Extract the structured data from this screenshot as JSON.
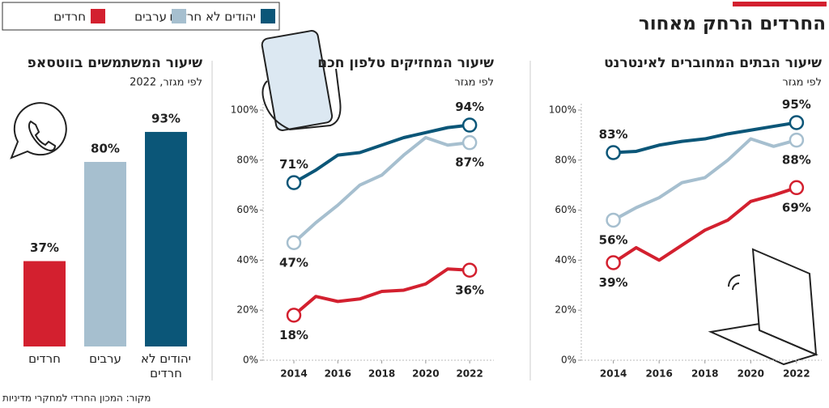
{
  "title": "החרדים הרחק מאחור",
  "source": "מקור: המכון החרדי למחקרי מדיניות",
  "chart_data": [
    {
      "type": "line",
      "title": "שיעור הבתים המחוברים לאינטרנט",
      "subtitle": "לפי מגזר",
      "x": [
        2014,
        2015,
        2016,
        2017,
        2018,
        2019,
        2020,
        2021,
        2022
      ],
      "xlim": [
        2012.6,
        2023.1
      ],
      "xticks": [
        2014,
        2016,
        2018,
        2020,
        2022
      ],
      "ylim": [
        0,
        100
      ],
      "yticks": [
        {
          "value": 0,
          "label": "0%"
        },
        {
          "value": 20,
          "label": "20%"
        },
        {
          "value": 40,
          "label": "40%"
        },
        {
          "value": 60,
          "label": "60%"
        },
        {
          "value": 80,
          "label": "80%"
        },
        {
          "value": 100,
          "label": "100%"
        }
      ],
      "series": [
        {
          "name": "יהודים לא חרדים",
          "color": "#0b5678",
          "values": [
            83,
            83.5,
            86,
            87.5,
            88.5,
            90.5,
            92,
            93.5,
            95
          ],
          "value_labels": [
            "83%",
            null,
            null,
            null,
            null,
            null,
            null,
            null,
            "95%"
          ]
        },
        {
          "name": "ערבים",
          "color": "#a6bfcf",
          "values": [
            56,
            61,
            65,
            71,
            73,
            80,
            88.5,
            85.5,
            88
          ],
          "value_labels": [
            "56%",
            null,
            null,
            null,
            null,
            null,
            null,
            null,
            "88%"
          ]
        },
        {
          "name": "חרדים",
          "color": "#d3202f",
          "values": [
            39,
            45,
            40,
            46,
            52,
            56,
            63.5,
            66,
            69
          ],
          "value_labels": [
            "39%",
            null,
            null,
            null,
            null,
            null,
            null,
            null,
            "69%"
          ]
        }
      ]
    },
    {
      "type": "line",
      "title": "שיעור המחזיקים טלפון חכם",
      "subtitle": "לפי מגזר",
      "x": [
        2014,
        2015,
        2016,
        2017,
        2018,
        2019,
        2020,
        2021,
        2022
      ],
      "xlim": [
        2012.6,
        2023.1
      ],
      "xticks": [
        2014,
        2016,
        2018,
        2020,
        2022
      ],
      "ylim": [
        0,
        100
      ],
      "yticks": [
        {
          "value": 0,
          "label": "0%"
        },
        {
          "value": 20,
          "label": "20%"
        },
        {
          "value": 40,
          "label": "40%"
        },
        {
          "value": 60,
          "label": "60%"
        },
        {
          "value": 80,
          "label": "80%"
        },
        {
          "value": 100,
          "label": "100%"
        }
      ],
      "series": [
        {
          "name": "יהודים לא חרדים",
          "color": "#0b5678",
          "values": [
            71,
            76,
            82,
            83,
            86,
            89,
            91,
            93,
            94
          ],
          "value_labels": [
            "71%",
            null,
            null,
            null,
            null,
            null,
            null,
            null,
            "94%"
          ]
        },
        {
          "name": "ערבים",
          "color": "#a6bfcf",
          "values": [
            47,
            55,
            62,
            70,
            74,
            82,
            89,
            86,
            87
          ],
          "value_labels": [
            "47%",
            null,
            null,
            null,
            null,
            null,
            null,
            null,
            "87%"
          ]
        },
        {
          "name": "חרדים",
          "color": "#d3202f",
          "values": [
            18,
            25.5,
            23.5,
            24.5,
            27.5,
            28,
            30.5,
            36.5,
            36
          ],
          "value_labels": [
            "18%",
            null,
            null,
            null,
            null,
            null,
            null,
            null,
            "36%"
          ]
        }
      ]
    },
    {
      "type": "bar",
      "title": "שיעור המשתמשים בווטסאפ",
      "subtitle": "לפי מגזר, 2022",
      "categories": [
        "יהודים לא חרדים",
        "ערבים",
        "חרדים"
      ],
      "values": [
        93,
        80,
        37
      ],
      "value_labels": [
        "93%",
        "80%",
        "37%"
      ],
      "colors": [
        "#0b5678",
        "#a6bfcf",
        "#d3202f"
      ]
    }
  ]
}
